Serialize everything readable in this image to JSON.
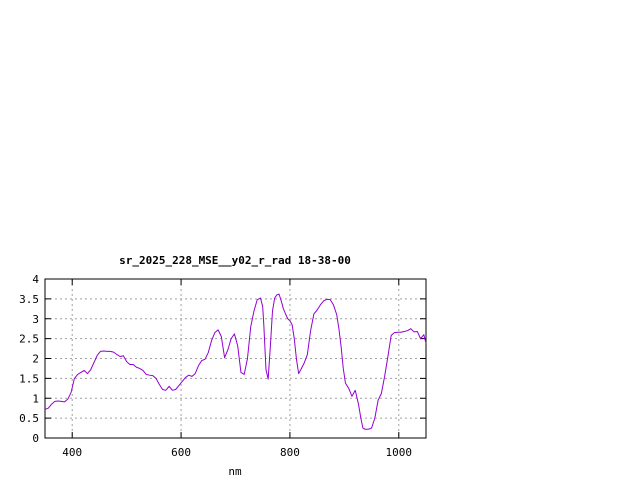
{
  "chart_data": {
    "type": "line",
    "title": "sr_2025_228_MSE__y02_r_rad 18-38-00",
    "xlabel": "nm",
    "ylabel": "",
    "xlim": [
      350,
      1050
    ],
    "ylim": [
      0,
      4
    ],
    "x_ticks": [
      400,
      600,
      800,
      1000
    ],
    "y_ticks": [
      0,
      0.5,
      1,
      1.5,
      2,
      2.5,
      3,
      3.5,
      4
    ],
    "x_tick_labels": [
      "400",
      "600",
      "800",
      "1000"
    ],
    "y_tick_labels": [
      "0",
      "0.5",
      "1",
      "1.5",
      "2",
      "2.5",
      "3",
      "3.5",
      "4"
    ],
    "grid": true,
    "legend": "none",
    "series": [
      {
        "color": "#9400d3",
        "x": [
          350,
          356,
          362,
          368,
          374,
          380,
          386,
          392,
          398,
          404,
          410,
          416,
          422,
          428,
          434,
          440,
          446,
          452,
          458,
          464,
          470,
          476,
          482,
          488,
          494,
          500,
          506,
          512,
          518,
          524,
          530,
          536,
          542,
          548,
          554,
          560,
          566,
          572,
          578,
          584,
          590,
          596,
          602,
          608,
          614,
          620,
          626,
          632,
          638,
          644,
          650,
          656,
          662,
          668,
          674,
          680,
          686,
          692,
          698,
          704,
          710,
          716,
          722,
          728,
          734,
          740,
          746,
          750,
          752,
          756,
          760,
          764,
          768,
          772,
          776,
          780,
          784,
          788,
          792,
          796,
          800,
          804,
          808,
          812,
          816,
          820,
          826,
          832,
          838,
          844,
          850,
          856,
          862,
          868,
          874,
          880,
          886,
          890,
          894,
          898,
          902,
          908,
          914,
          920,
          926,
          930,
          934,
          938,
          944,
          950,
          956,
          962,
          968,
          974,
          980,
          986,
          992,
          998,
          1004,
          1010,
          1016,
          1022,
          1028,
          1034,
          1040,
          1046,
          1050
        ],
        "y": [
          0.72,
          0.75,
          0.85,
          0.92,
          0.93,
          0.92,
          0.91,
          0.98,
          1.15,
          1.5,
          1.6,
          1.65,
          1.7,
          1.62,
          1.72,
          1.9,
          2.08,
          2.18,
          2.19,
          2.18,
          2.18,
          2.16,
          2.1,
          2.05,
          2.07,
          1.92,
          1.85,
          1.85,
          1.78,
          1.75,
          1.7,
          1.6,
          1.58,
          1.57,
          1.5,
          1.35,
          1.22,
          1.2,
          1.3,
          1.2,
          1.22,
          1.32,
          1.42,
          1.52,
          1.58,
          1.55,
          1.62,
          1.82,
          1.95,
          1.98,
          2.15,
          2.45,
          2.65,
          2.72,
          2.55,
          2.02,
          2.22,
          2.5,
          2.62,
          2.32,
          1.65,
          1.6,
          2.0,
          2.8,
          3.2,
          3.48,
          3.52,
          3.3,
          2.85,
          1.72,
          1.48,
          2.3,
          3.2,
          3.52,
          3.6,
          3.62,
          3.45,
          3.25,
          3.12,
          3.0,
          2.95,
          2.85,
          2.5,
          1.98,
          1.62,
          1.72,
          1.88,
          2.1,
          2.7,
          3.12,
          3.22,
          3.35,
          3.45,
          3.49,
          3.48,
          3.35,
          3.1,
          2.75,
          2.3,
          1.75,
          1.38,
          1.25,
          1.05,
          1.2,
          0.85,
          0.52,
          0.25,
          0.22,
          0.22,
          0.25,
          0.5,
          0.95,
          1.12,
          1.55,
          2.05,
          2.58,
          2.65,
          2.66,
          2.66,
          2.68,
          2.7,
          2.75,
          2.67,
          2.68,
          2.5,
          2.6,
          2.38
        ]
      }
    ]
  }
}
